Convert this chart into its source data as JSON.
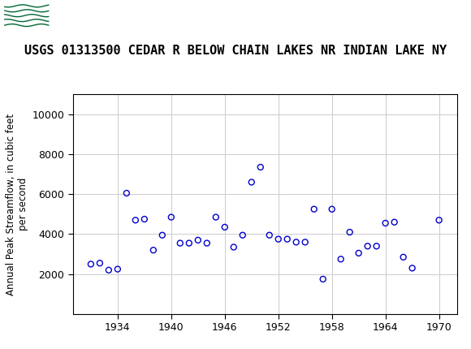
{
  "title": "USGS 01313500 CEDAR R BELOW CHAIN LAKES NR INDIAN LAKE NY",
  "ylabel": "Annual Peak Streamflow, in cubic feet\nper second",
  "xlabel": "",
  "years": [
    1931,
    1932,
    1933,
    1934,
    1935,
    1936,
    1937,
    1938,
    1939,
    1940,
    1941,
    1942,
    1943,
    1944,
    1945,
    1946,
    1947,
    1948,
    1949,
    1950,
    1951,
    1952,
    1953,
    1954,
    1955,
    1956,
    1957,
    1958,
    1959,
    1960,
    1961,
    1962,
    1963,
    1964,
    1965,
    1966,
    1967,
    1970
  ],
  "flows": [
    2500,
    2550,
    2200,
    2250,
    6050,
    4700,
    4750,
    3200,
    3950,
    4850,
    3550,
    3550,
    3700,
    3550,
    4850,
    4350,
    3350,
    3950,
    6600,
    7350,
    3950,
    3750,
    3750,
    3600,
    3600,
    5250,
    1750,
    5250,
    2750,
    4100,
    3050,
    3400,
    3400,
    4550,
    4600,
    2850,
    2300,
    4700
  ],
  "xlim": [
    1929,
    1972
  ],
  "ylim": [
    0,
    11000
  ],
  "xticks": [
    1934,
    1940,
    1946,
    1952,
    1958,
    1964,
    1970
  ],
  "yticks": [
    2000,
    4000,
    6000,
    8000,
    10000
  ],
  "marker_color": "#0000CC",
  "marker_size": 5,
  "grid_color": "#CCCCCC",
  "bg_color": "#FFFFFF",
  "header_color": "#006633",
  "header_text_color": "#FFFFFF",
  "title_fontsize": 11,
  "axis_fontsize": 8.5,
  "tick_fontsize": 9
}
